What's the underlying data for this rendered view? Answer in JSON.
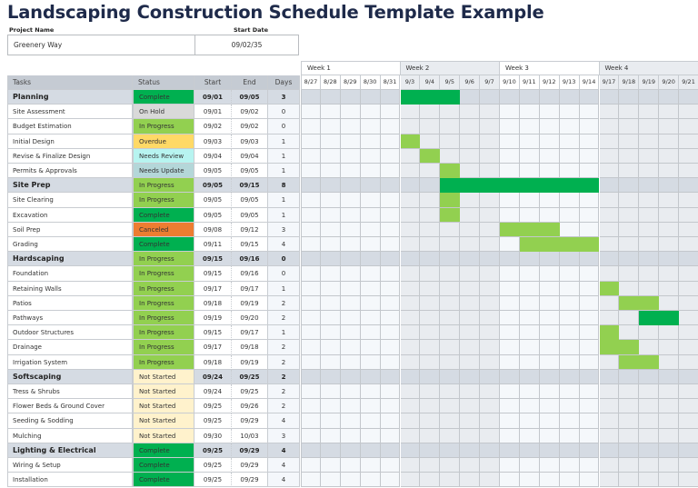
{
  "title": "Landscaping Construction Schedule Template Example",
  "project": {
    "name_label": "Project Name",
    "name_value": "Greenery Way",
    "start_label": "Start Date",
    "start_value": "09/02/35"
  },
  "table": {
    "headers": {
      "task": "Tasks",
      "status": "Status",
      "start": "Start",
      "end": "End",
      "days": "Days"
    },
    "rows": [
      {
        "type": "group",
        "task": "Planning",
        "status": "Complete",
        "start": "09/01",
        "end": "09/05",
        "days": "3"
      },
      {
        "type": "sub",
        "task": "Site Assessment",
        "status": "On Hold",
        "start": "09/01",
        "end": "09/02",
        "days": "0"
      },
      {
        "type": "sub",
        "task": "Budget Estimation",
        "status": "In Progress",
        "start": "09/02",
        "end": "09/02",
        "days": "0"
      },
      {
        "type": "sub",
        "task": "Initial Design",
        "status": "Overdue",
        "start": "09/03",
        "end": "09/03",
        "days": "1"
      },
      {
        "type": "sub",
        "task": "Revise & Finalize Design",
        "status": "Needs Review",
        "start": "09/04",
        "end": "09/04",
        "days": "1"
      },
      {
        "type": "sub",
        "task": "Permits & Approvals",
        "status": "Needs Update",
        "start": "09/05",
        "end": "09/05",
        "days": "1"
      },
      {
        "type": "group",
        "task": "Site Prep",
        "status": "In Progress",
        "start": "09/05",
        "end": "09/15",
        "days": "8"
      },
      {
        "type": "sub",
        "task": "Site Clearing",
        "status": "In Progress",
        "start": "09/05",
        "end": "09/05",
        "days": "1"
      },
      {
        "type": "sub",
        "task": "Excavation",
        "status": "Complete",
        "start": "09/05",
        "end": "09/05",
        "days": "1"
      },
      {
        "type": "sub",
        "task": "Soil Prep",
        "status": "Canceled",
        "start": "09/08",
        "end": "09/12",
        "days": "3"
      },
      {
        "type": "sub",
        "task": "Grading",
        "status": "Complete",
        "start": "09/11",
        "end": "09/15",
        "days": "4"
      },
      {
        "type": "group",
        "task": "Hardscaping",
        "status": "In Progress",
        "start": "09/15",
        "end": "09/16",
        "days": "0"
      },
      {
        "type": "sub",
        "task": "Foundation",
        "status": "In Progress",
        "start": "09/15",
        "end": "09/16",
        "days": "0"
      },
      {
        "type": "sub",
        "task": "Retaining Walls",
        "status": "In Progress",
        "start": "09/17",
        "end": "09/17",
        "days": "1"
      },
      {
        "type": "sub",
        "task": "Patios",
        "status": "In Progress",
        "start": "09/18",
        "end": "09/19",
        "days": "2"
      },
      {
        "type": "sub",
        "task": "Pathways",
        "status": "In Progress",
        "start": "09/19",
        "end": "09/20",
        "days": "2"
      },
      {
        "type": "sub",
        "task": "Outdoor Structures",
        "status": "In Progress",
        "start": "09/15",
        "end": "09/17",
        "days": "1"
      },
      {
        "type": "sub",
        "task": "Drainage",
        "status": "In Progress",
        "start": "09/17",
        "end": "09/18",
        "days": "2"
      },
      {
        "type": "sub",
        "task": "Irrigation System",
        "status": "In Progress",
        "start": "09/18",
        "end": "09/19",
        "days": "2"
      },
      {
        "type": "group",
        "task": "Softscaping",
        "status": "Not Started",
        "start": "09/24",
        "end": "09/25",
        "days": "2"
      },
      {
        "type": "sub",
        "task": "Tress & Shrubs",
        "status": "Not Started",
        "start": "09/24",
        "end": "09/25",
        "days": "2"
      },
      {
        "type": "sub",
        "task": "Flower Beds & Ground Cover",
        "status": "Not Started",
        "start": "09/25",
        "end": "09/26",
        "days": "2"
      },
      {
        "type": "sub",
        "task": "Seeding & Sodding",
        "status": "Not Started",
        "start": "09/25",
        "end": "09/29",
        "days": "4"
      },
      {
        "type": "sub",
        "task": "Mulching",
        "status": "Not Started",
        "start": "09/30",
        "end": "10/03",
        "days": "3"
      },
      {
        "type": "group",
        "task": "Lighting & Electrical",
        "status": "Complete",
        "start": "09/25",
        "end": "09/29",
        "days": "4"
      },
      {
        "type": "sub",
        "task": "Wiring & Setup",
        "status": "Complete",
        "start": "09/25",
        "end": "09/29",
        "days": "4"
      },
      {
        "type": "sub",
        "task": "Installation",
        "status": "Complete",
        "start": "09/25",
        "end": "09/29",
        "days": "4"
      }
    ]
  },
  "status_colors": {
    "Complete": "#00b050",
    "In Progress": "#92d050",
    "On Hold": "#d9d9d9",
    "Overdue": "#ffd966",
    "Needs Review": "#b7f4f0",
    "Needs Update": "#b4d7d9",
    "Canceled": "#ed7d31",
    "Not Started": "#fff2cc"
  },
  "gantt": {
    "weeks": [
      "Week 1",
      "Week 2",
      "Week 3",
      "Week 4"
    ],
    "days": [
      "8/27",
      "8/28",
      "8/29",
      "8/30",
      "8/31",
      "9/3",
      "9/4",
      "9/5",
      "9/6",
      "9/7",
      "9/10",
      "9/11",
      "9/12",
      "9/13",
      "9/14",
      "9/17",
      "9/18",
      "9/19",
      "9/20",
      "9/21"
    ],
    "bars": [
      {
        "row": 0,
        "start": 5,
        "span": 3,
        "color": "#00b050"
      },
      {
        "row": 3,
        "start": 5,
        "span": 1,
        "color": "#92d050"
      },
      {
        "row": 4,
        "start": 6,
        "span": 1,
        "color": "#92d050"
      },
      {
        "row": 5,
        "start": 7,
        "span": 1,
        "color": "#92d050"
      },
      {
        "row": 6,
        "start": 7,
        "span": 8,
        "color": "#00b050"
      },
      {
        "row": 7,
        "start": 7,
        "span": 1,
        "color": "#92d050"
      },
      {
        "row": 8,
        "start": 7,
        "span": 1,
        "color": "#92d050"
      },
      {
        "row": 9,
        "start": 10,
        "span": 3,
        "color": "#92d050"
      },
      {
        "row": 10,
        "start": 11,
        "span": 4,
        "color": "#92d050"
      },
      {
        "row": 13,
        "start": 15,
        "span": 1,
        "color": "#92d050"
      },
      {
        "row": 14,
        "start": 16,
        "span": 2,
        "color": "#92d050"
      },
      {
        "row": 15,
        "start": 17,
        "span": 2,
        "color": "#00b050"
      },
      {
        "row": 16,
        "start": 15,
        "span": 1,
        "color": "#92d050"
      },
      {
        "row": 17,
        "start": 15,
        "span": 2,
        "color": "#92d050"
      },
      {
        "row": 18,
        "start": 16,
        "span": 2,
        "color": "#92d050"
      }
    ]
  }
}
